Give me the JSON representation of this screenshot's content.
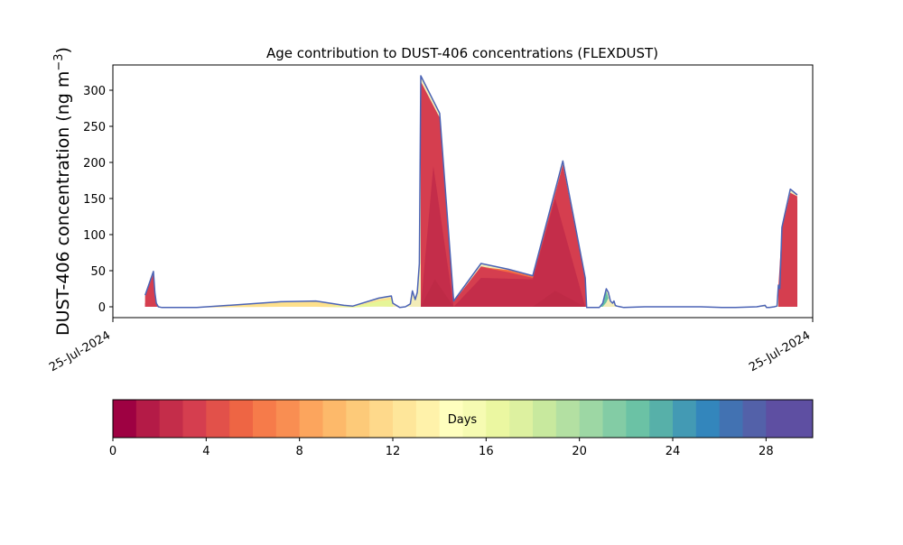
{
  "chart_data": {
    "type": "area",
    "title": "Age contribution to DUST-406 concentrations (FLEXDUST)",
    "ylabel_main": "DUST-406 concentration (ng m",
    "ylabel_sup": "−3",
    "ylabel_close": ")",
    "xlabel": "",
    "y_ticks": [
      0,
      50,
      100,
      150,
      200,
      250,
      300
    ],
    "ylim": [
      -15,
      335
    ],
    "xlim": [
      0,
      1
    ],
    "x_tick_labels": [
      "25-Jul-2024",
      "25-Jul-2024"
    ],
    "grid": false,
    "outline_color": "#4b63b5",
    "total": [
      [
        0.046,
        0
      ],
      [
        0.046,
        16
      ],
      [
        0.058,
        49
      ],
      [
        0.06,
        20
      ],
      [
        0.062,
        5
      ],
      [
        0.065,
        0
      ],
      [
        0.07,
        -1
      ],
      [
        0.12,
        -1
      ],
      [
        0.24,
        7
      ],
      [
        0.29,
        8
      ],
      [
        0.33,
        2
      ],
      [
        0.343,
        1
      ],
      [
        0.38,
        12
      ],
      [
        0.398,
        15
      ],
      [
        0.4,
        5
      ],
      [
        0.41,
        -1
      ],
      [
        0.418,
        0
      ],
      [
        0.425,
        4
      ],
      [
        0.428,
        22
      ],
      [
        0.432,
        10
      ],
      [
        0.435,
        20
      ],
      [
        0.438,
        60
      ],
      [
        0.44,
        320
      ],
      [
        0.467,
        268
      ],
      [
        0.487,
        8
      ],
      [
        0.526,
        60
      ],
      [
        0.565,
        52
      ],
      [
        0.6,
        43
      ],
      [
        0.643,
        202
      ],
      [
        0.675,
        40
      ],
      [
        0.677,
        -1
      ],
      [
        0.695,
        -1
      ],
      [
        0.7,
        5
      ],
      [
        0.705,
        25
      ],
      [
        0.708,
        20
      ],
      [
        0.711,
        8
      ],
      [
        0.714,
        5
      ],
      [
        0.716,
        8
      ],
      [
        0.718,
        2
      ],
      [
        0.72,
        1
      ],
      [
        0.725,
        0
      ],
      [
        0.73,
        -1
      ],
      [
        0.76,
        0
      ],
      [
        0.84,
        0
      ],
      [
        0.87,
        -1
      ],
      [
        0.89,
        -1
      ],
      [
        0.92,
        0
      ],
      [
        0.932,
        2
      ],
      [
        0.934,
        -1
      ],
      [
        0.938,
        -1
      ],
      [
        0.945,
        0
      ],
      [
        0.949,
        1
      ],
      [
        0.951,
        30
      ],
      [
        0.953,
        25
      ],
      [
        0.956,
        110
      ],
      [
        0.968,
        163
      ],
      [
        0.978,
        155
      ],
      [
        0.978,
        0
      ]
    ],
    "layers": [
      {
        "age_days": 0,
        "color": "#9e0142",
        "points": [
          [
            0.046,
            0
          ],
          [
            0.046,
            5
          ],
          [
            0.056,
            12
          ],
          [
            0.058,
            0
          ],
          [
            0.951,
            0
          ],
          [
            0.951,
            14
          ],
          [
            0.956,
            92
          ],
          [
            0.968,
            142
          ],
          [
            0.978,
            148
          ],
          [
            0.978,
            0
          ]
        ]
      },
      {
        "age_days": 2,
        "color": "#d53e4f",
        "points": [
          [
            0.046,
            0
          ],
          [
            0.046,
            15
          ],
          [
            0.058,
            46
          ],
          [
            0.061,
            10
          ],
          [
            0.065,
            0
          ],
          [
            0.44,
            0
          ],
          [
            0.44,
            312
          ],
          [
            0.467,
            262
          ],
          [
            0.487,
            7
          ],
          [
            0.526,
            56
          ],
          [
            0.565,
            49
          ],
          [
            0.6,
            41
          ],
          [
            0.643,
            197
          ],
          [
            0.675,
            38
          ],
          [
            0.677,
            0
          ],
          [
            0.951,
            0
          ],
          [
            0.951,
            28
          ],
          [
            0.956,
            108
          ],
          [
            0.968,
            158
          ],
          [
            0.978,
            153
          ],
          [
            0.978,
            0
          ]
        ]
      },
      {
        "age_days": 5,
        "color": "#f46d43",
        "points": [
          [
            0.526,
            55
          ],
          [
            0.565,
            48
          ],
          [
            0.6,
            40
          ],
          [
            0.643,
            195
          ],
          [
            0.6,
            42
          ],
          [
            0.565,
            51
          ]
        ]
      },
      {
        "age_days": 1,
        "color": "#c42d4a",
        "points": [
          [
            0.44,
            0
          ],
          [
            0.458,
            195
          ],
          [
            0.487,
            0
          ],
          [
            0.526,
            40
          ],
          [
            0.6,
            38
          ],
          [
            0.632,
            150
          ],
          [
            0.675,
            0
          ]
        ]
      },
      {
        "age_days": 0.5,
        "color": "#be2a46",
        "points": [
          [
            0.44,
            0
          ],
          [
            0.46,
            38
          ],
          [
            0.487,
            0
          ],
          [
            0.6,
            0
          ],
          [
            0.632,
            22
          ],
          [
            0.675,
            0
          ]
        ]
      },
      {
        "age_days": 10,
        "color": "#fee08b",
        "points": [
          [
            0.12,
            -1
          ],
          [
            0.24,
            6
          ],
          [
            0.29,
            7
          ],
          [
            0.33,
            1
          ],
          [
            0.343,
            0
          ],
          [
            0.38,
            10
          ],
          [
            0.398,
            13
          ],
          [
            0.4,
            0
          ],
          [
            0.398,
            2
          ],
          [
            0.38,
            2
          ],
          [
            0.343,
            -1
          ],
          [
            0.29,
            0
          ],
          [
            0.24,
            0
          ]
        ]
      },
      {
        "age_days": 16,
        "color": "#e6f598",
        "points": [
          [
            0.3,
            2
          ],
          [
            0.33,
            1
          ],
          [
            0.343,
            0
          ],
          [
            0.38,
            8
          ],
          [
            0.398,
            10
          ],
          [
            0.4,
            0
          ],
          [
            0.38,
            1
          ],
          [
            0.343,
            -1
          ],
          [
            0.32,
            0
          ]
        ]
      },
      {
        "age_days": 22,
        "color": "#66c2a5",
        "points": [
          [
            0.695,
            0
          ],
          [
            0.7,
            4
          ],
          [
            0.705,
            22
          ],
          [
            0.708,
            12
          ],
          [
            0.705,
            6
          ],
          [
            0.7,
            0
          ]
        ]
      }
    ],
    "colorbar": {
      "label": "Days",
      "min": 0,
      "max": 30,
      "ticks": [
        0,
        4,
        8,
        12,
        16,
        20,
        24,
        28
      ],
      "colors": [
        "#9e0142",
        "#b41b47",
        "#c42d4a",
        "#d53e4f",
        "#e2514a",
        "#ee6544",
        "#f67b4a",
        "#f98e52",
        "#fca55d",
        "#fdb96a",
        "#fdca79",
        "#fed98b",
        "#fee69a",
        "#fff2aa",
        "#ffffbe",
        "#f6fbb2",
        "#ebf7a1",
        "#ddf1a0",
        "#c8e99e",
        "#b3e0a2",
        "#9dd7a4",
        "#83cca5",
        "#6bc2a5",
        "#57b0a9",
        "#439ab4",
        "#3386bc",
        "#4272b2",
        "#5361a9",
        "#5e4fa2",
        "#5e4fa2"
      ]
    }
  }
}
